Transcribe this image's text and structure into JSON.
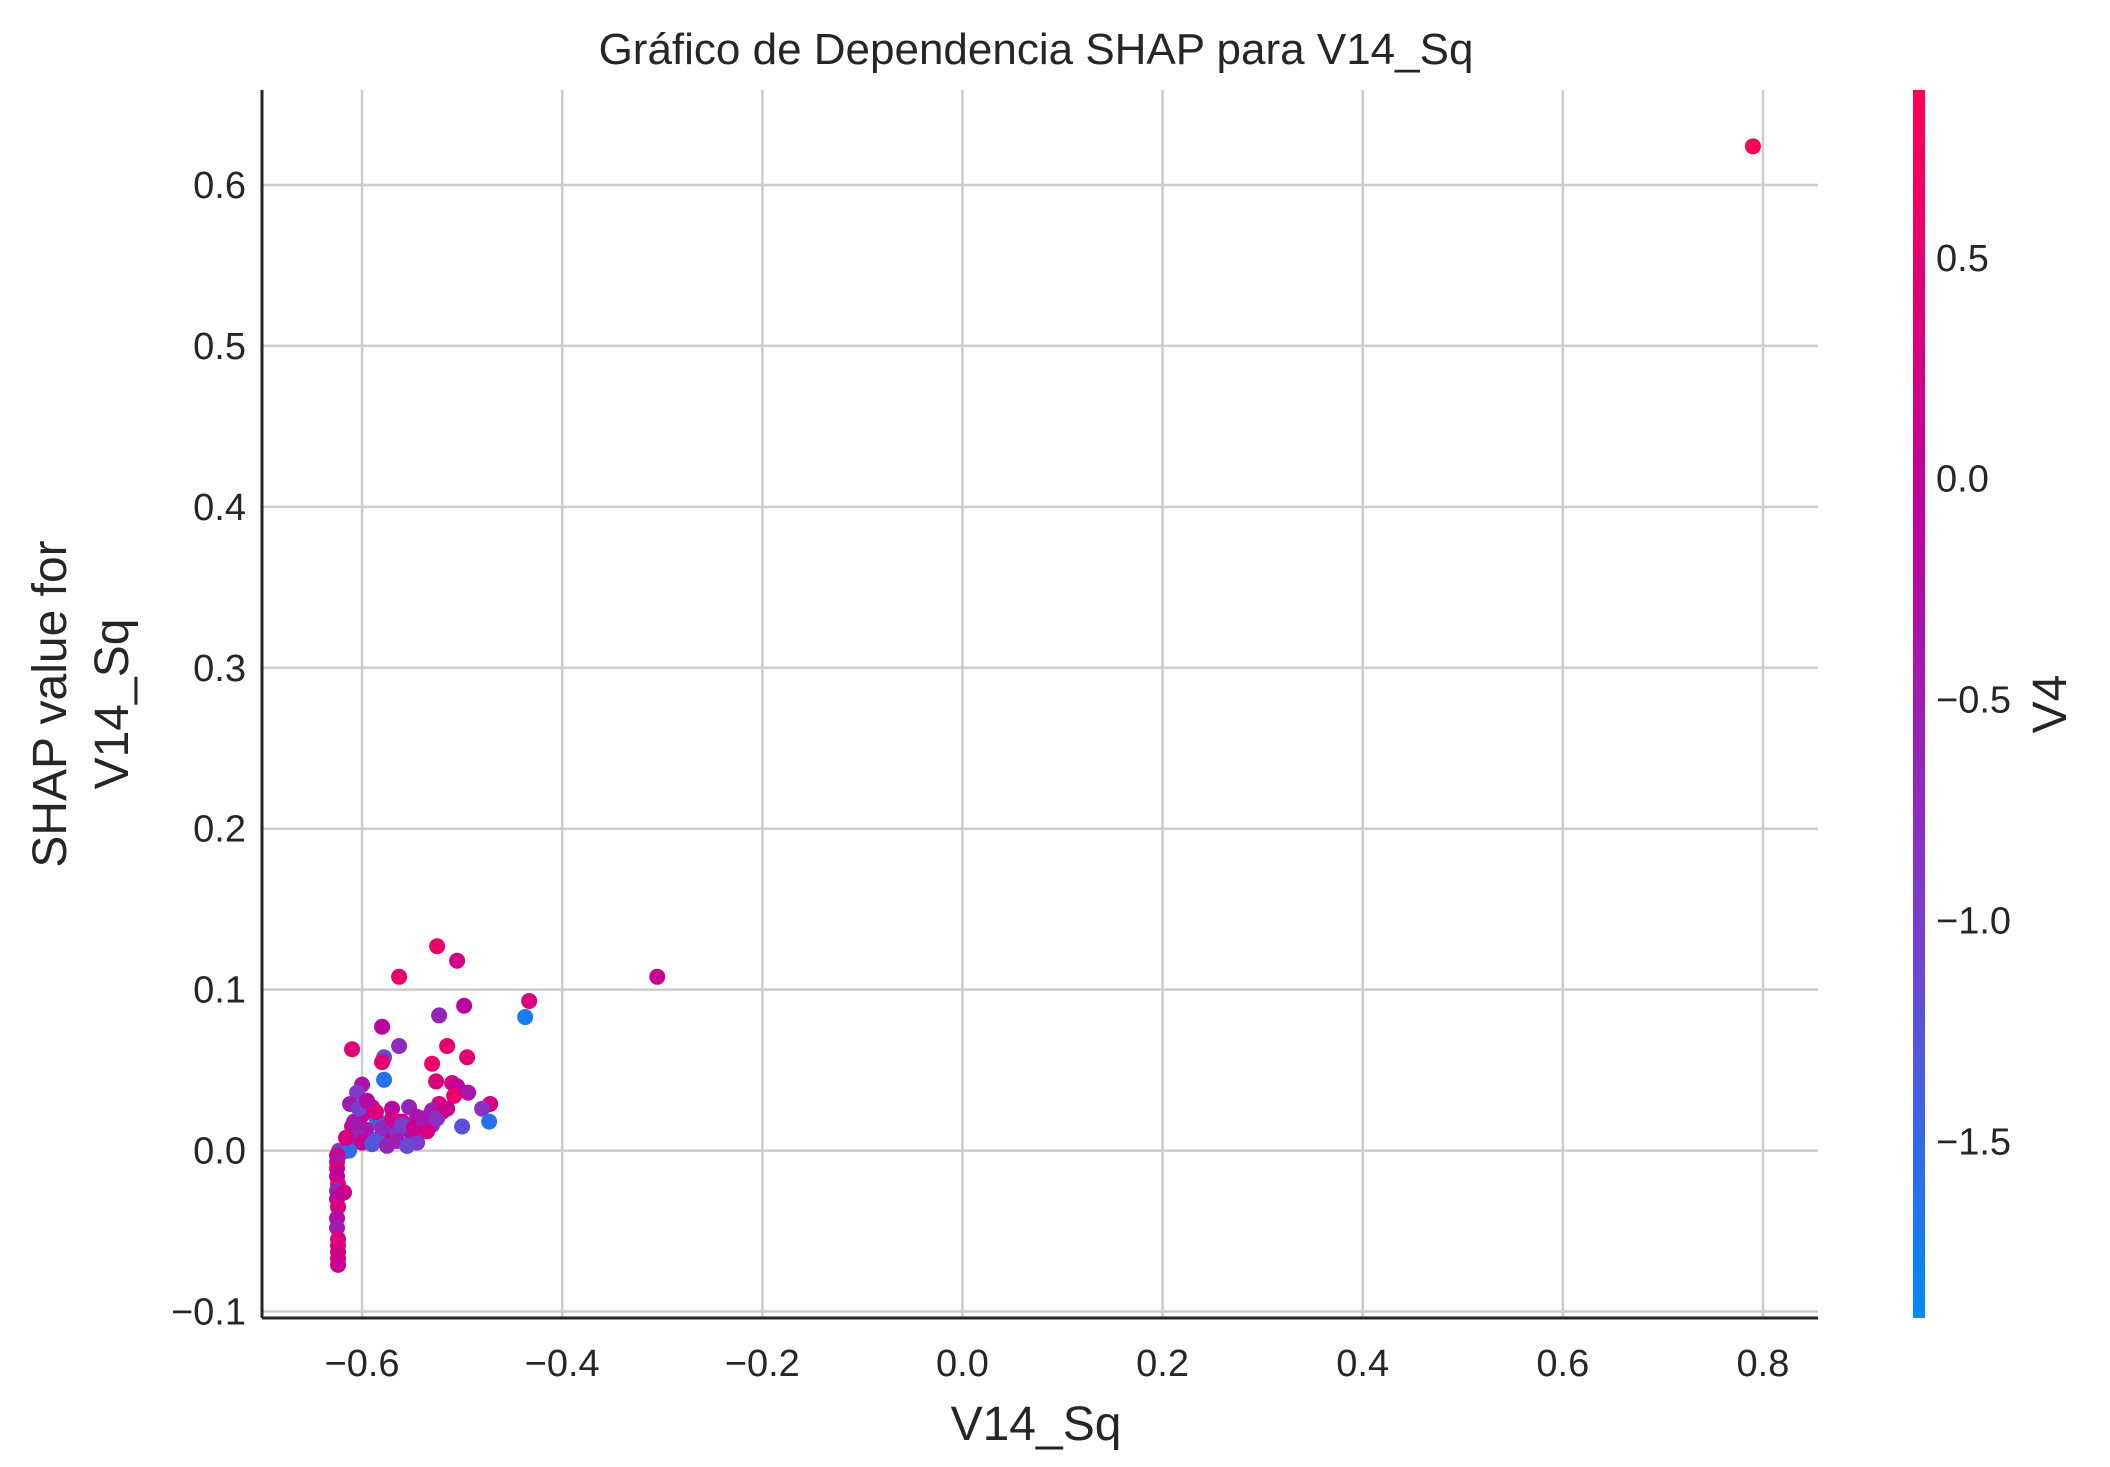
{
  "chart_data": {
    "type": "scatter",
    "title": "Gráfico de Dependencia SHAP para V14_Sq",
    "xlabel": "V14_Sq",
    "ylabel": [
      "SHAP value for",
      "V14_Sq"
    ],
    "xlim": [
      -0.7,
      0.855
    ],
    "ylim": [
      -0.104,
      0.659
    ],
    "xticks": [
      -0.6,
      -0.4,
      -0.2,
      0.0,
      0.2,
      0.4,
      0.6,
      0.8
    ],
    "xtick_labels": [
      "−0.6",
      "−0.4",
      "−0.2",
      "0.0",
      "0.2",
      "0.4",
      "0.6",
      "0.8"
    ],
    "yticks": [
      -0.1,
      0.0,
      0.1,
      0.2,
      0.3,
      0.4,
      0.5,
      0.6
    ],
    "ytick_labels": [
      "−0.1",
      "0.0",
      "0.1",
      "0.2",
      "0.3",
      "0.4",
      "0.5",
      "0.6"
    ],
    "grid": true,
    "colorbar": {
      "label": "V4",
      "range": [
        -1.9,
        0.88
      ],
      "ticks": [
        0.5,
        0.0,
        -0.5,
        -1.0,
        -1.5
      ],
      "tick_labels": [
        "0.5",
        "0.0",
        "−0.5",
        "−1.0",
        "−1.5"
      ],
      "colors": [
        "#008afb",
        "#7c3ccd",
        "#c0009c",
        "#ff0053"
      ]
    },
    "points": [
      {
        "x": 0.79,
        "y": 0.624,
        "c": 0.85
      },
      {
        "x": -0.305,
        "y": 0.108,
        "c": 0.1
      },
      {
        "x": -0.433,
        "y": 0.093,
        "c": 0.35
      },
      {
        "x": -0.437,
        "y": 0.083,
        "c": -1.75
      },
      {
        "x": -0.525,
        "y": 0.127,
        "c": 0.55
      },
      {
        "x": -0.505,
        "y": 0.118,
        "c": 0.2
      },
      {
        "x": -0.563,
        "y": 0.108,
        "c": 0.6
      },
      {
        "x": -0.498,
        "y": 0.09,
        "c": -0.15
      },
      {
        "x": -0.523,
        "y": 0.084,
        "c": -0.6
      },
      {
        "x": -0.58,
        "y": 0.077,
        "c": -0.1
      },
      {
        "x": -0.563,
        "y": 0.065,
        "c": -0.7
      },
      {
        "x": -0.515,
        "y": 0.065,
        "c": 0.55
      },
      {
        "x": -0.61,
        "y": 0.063,
        "c": 0.45
      },
      {
        "x": -0.578,
        "y": 0.058,
        "c": -1.2
      },
      {
        "x": -0.495,
        "y": 0.058,
        "c": 0.5
      },
      {
        "x": -0.53,
        "y": 0.054,
        "c": 0.6
      },
      {
        "x": -0.58,
        "y": 0.055,
        "c": 0.5
      },
      {
        "x": -0.578,
        "y": 0.044,
        "c": -1.6
      },
      {
        "x": -0.526,
        "y": 0.043,
        "c": 0.4
      },
      {
        "x": -0.51,
        "y": 0.042,
        "c": 0.3
      },
      {
        "x": -0.505,
        "y": 0.04,
        "c": -0.1
      },
      {
        "x": -0.6,
        "y": 0.041,
        "c": -0.3
      },
      {
        "x": -0.605,
        "y": 0.036,
        "c": -0.9
      },
      {
        "x": -0.494,
        "y": 0.036,
        "c": -0.4
      },
      {
        "x": -0.508,
        "y": 0.034,
        "c": 0.6
      },
      {
        "x": -0.472,
        "y": 0.029,
        "c": 0.3
      },
      {
        "x": -0.48,
        "y": 0.026,
        "c": -0.8
      },
      {
        "x": -0.523,
        "y": 0.029,
        "c": 0.2
      },
      {
        "x": -0.53,
        "y": 0.025,
        "c": -0.5
      },
      {
        "x": -0.52,
        "y": 0.024,
        "c": 0.5
      },
      {
        "x": -0.612,
        "y": 0.029,
        "c": -0.5
      },
      {
        "x": -0.59,
        "y": 0.027,
        "c": 0.3
      },
      {
        "x": -0.57,
        "y": 0.026,
        "c": -0.2
      },
      {
        "x": -0.553,
        "y": 0.027,
        "c": -0.6
      },
      {
        "x": -0.545,
        "y": 0.021,
        "c": -0.3
      },
      {
        "x": -0.6,
        "y": 0.022,
        "c": 0.0
      },
      {
        "x": -0.585,
        "y": 0.019,
        "c": -1.4
      },
      {
        "x": -0.56,
        "y": 0.018,
        "c": 0.1
      },
      {
        "x": -0.53,
        "y": 0.016,
        "c": -0.7
      },
      {
        "x": -0.473,
        "y": 0.018,
        "c": -1.6
      },
      {
        "x": -0.5,
        "y": 0.015,
        "c": -1.2
      },
      {
        "x": -0.61,
        "y": 0.015,
        "c": 0.2
      },
      {
        "x": -0.596,
        "y": 0.013,
        "c": -0.4
      },
      {
        "x": -0.575,
        "y": 0.012,
        "c": 0.0
      },
      {
        "x": -0.565,
        "y": 0.011,
        "c": -0.8
      },
      {
        "x": -0.55,
        "y": 0.01,
        "c": -0.3
      },
      {
        "x": -0.535,
        "y": 0.012,
        "c": 0.3
      },
      {
        "x": -0.605,
        "y": 0.009,
        "c": -0.6
      },
      {
        "x": -0.585,
        "y": 0.007,
        "c": -1.2
      },
      {
        "x": -0.565,
        "y": 0.006,
        "c": -0.5
      },
      {
        "x": -0.545,
        "y": 0.005,
        "c": -0.9
      },
      {
        "x": -0.555,
        "y": 0.003,
        "c": -1.1
      },
      {
        "x": -0.6,
        "y": 0.005,
        "c": 0.1
      },
      {
        "x": -0.59,
        "y": 0.004,
        "c": -1.3
      },
      {
        "x": -0.575,
        "y": 0.003,
        "c": -0.6
      },
      {
        "x": -0.612,
        "y": 0.003,
        "c": -0.2
      },
      {
        "x": -0.617,
        "y": 0.001,
        "c": -1.7
      },
      {
        "x": -0.62,
        "y": -0.001,
        "c": 0.4
      },
      {
        "x": -0.623,
        "y": 0.0,
        "c": -0.9
      },
      {
        "x": -0.613,
        "y": 0.0,
        "c": -1.5
      },
      {
        "x": -0.625,
        "y": -0.003,
        "c": 0.2
      },
      {
        "x": -0.625,
        "y": -0.007,
        "c": -0.4
      },
      {
        "x": -0.625,
        "y": -0.011,
        "c": 0.3
      },
      {
        "x": -0.625,
        "y": -0.016,
        "c": -0.1
      },
      {
        "x": -0.624,
        "y": -0.021,
        "c": 0.4
      },
      {
        "x": -0.625,
        "y": -0.025,
        "c": -0.6
      },
      {
        "x": -0.618,
        "y": -0.026,
        "c": 0.2
      },
      {
        "x": -0.625,
        "y": -0.03,
        "c": 0.0
      },
      {
        "x": -0.624,
        "y": -0.035,
        "c": 0.3
      },
      {
        "x": -0.625,
        "y": -0.042,
        "c": -0.2
      },
      {
        "x": -0.625,
        "y": -0.048,
        "c": -0.5
      },
      {
        "x": -0.624,
        "y": -0.055,
        "c": 0.3
      },
      {
        "x": -0.624,
        "y": -0.059,
        "c": 0.5
      },
      {
        "x": -0.624,
        "y": -0.063,
        "c": 0.2
      },
      {
        "x": -0.624,
        "y": -0.067,
        "c": 0.3
      },
      {
        "x": -0.624,
        "y": -0.071,
        "c": 0.1
      },
      {
        "x": -0.616,
        "y": 0.008,
        "c": 0.3
      },
      {
        "x": -0.608,
        "y": 0.018,
        "c": -0.4
      },
      {
        "x": -0.603,
        "y": 0.026,
        "c": -1.0
      },
      {
        "x": -0.595,
        "y": 0.031,
        "c": -0.2
      },
      {
        "x": -0.586,
        "y": 0.024,
        "c": 0.4
      },
      {
        "x": -0.58,
        "y": 0.014,
        "c": -0.7
      },
      {
        "x": -0.57,
        "y": 0.02,
        "c": 0.2
      },
      {
        "x": -0.56,
        "y": 0.016,
        "c": -1.0
      },
      {
        "x": -0.548,
        "y": 0.014,
        "c": 0.1
      },
      {
        "x": -0.54,
        "y": 0.02,
        "c": -0.4
      },
      {
        "x": -0.525,
        "y": 0.02,
        "c": -0.8
      },
      {
        "x": -0.515,
        "y": 0.026,
        "c": 0.1
      }
    ]
  }
}
